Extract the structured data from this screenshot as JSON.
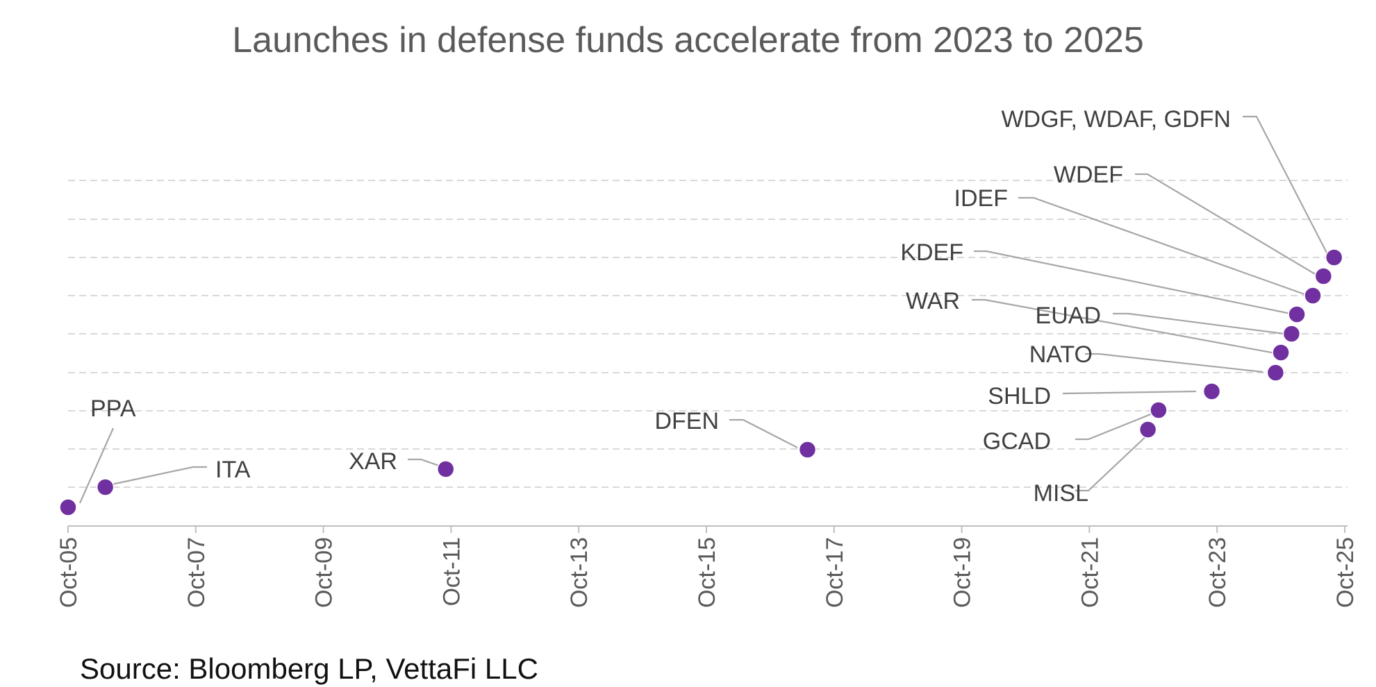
{
  "chart_data": {
    "type": "scatter",
    "title": "Launches in defense funds accelerate from 2023 to 2025",
    "source": "Source: Bloomberg LP, VettaFi LLC",
    "xlabel": "",
    "ylabel": "",
    "x_tick_labels": [
      "Oct-05",
      "Oct-07",
      "Oct-09",
      "Oct-11",
      "Oct-13",
      "Oct-15",
      "Oct-17",
      "Oct-19",
      "Oct-21",
      "Oct-23",
      "Oct-25"
    ],
    "x_range": [
      "2005-10",
      "2025-10"
    ],
    "y_axis_visible": false,
    "grid": "horizontal dashed",
    "marker_color": "#7030a0",
    "points": [
      {
        "label": "PPA",
        "date": "2005-10"
      },
      {
        "label": "ITA",
        "date": "2006-05"
      },
      {
        "label": "XAR",
        "date": "2011-09"
      },
      {
        "label": "DFEN",
        "date": "2017-05"
      },
      {
        "label": "MISL",
        "date": "2022-09"
      },
      {
        "label": "GCAD",
        "date": "2022-11"
      },
      {
        "label": "SHLD",
        "date": "2023-09"
      },
      {
        "label": "NATO",
        "date": "2024-09"
      },
      {
        "label": "WAR",
        "date": "2024-10"
      },
      {
        "label": "EUAD",
        "date": "2024-12"
      },
      {
        "label": "KDEF",
        "date": "2025-01"
      },
      {
        "label": "IDEF",
        "date": "2025-04"
      },
      {
        "label": "WDEF",
        "date": "2025-06"
      },
      {
        "label": "WDGF, WDAF, GDFN",
        "date": "2025-08"
      }
    ]
  }
}
